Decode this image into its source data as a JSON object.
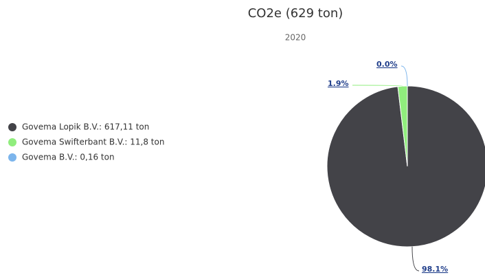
{
  "chart_data": {
    "type": "pie",
    "title": "CO2e (629 ton)",
    "subtitle": "2020",
    "categories": [
      "Govema Lopik B.V.: 617,11 ton",
      "Govema Swifterbant B.V.: 11,8 ton",
      "Govema B.V.: 0,16 ton"
    ],
    "values": [
      98.1,
      1.9,
      0.0
    ],
    "value_labels": [
      "98.1%",
      "1.9%",
      "0.0%"
    ],
    "colors": [
      "#434348",
      "#90ed7d",
      "#7cb5ec"
    ],
    "legend": "left"
  }
}
